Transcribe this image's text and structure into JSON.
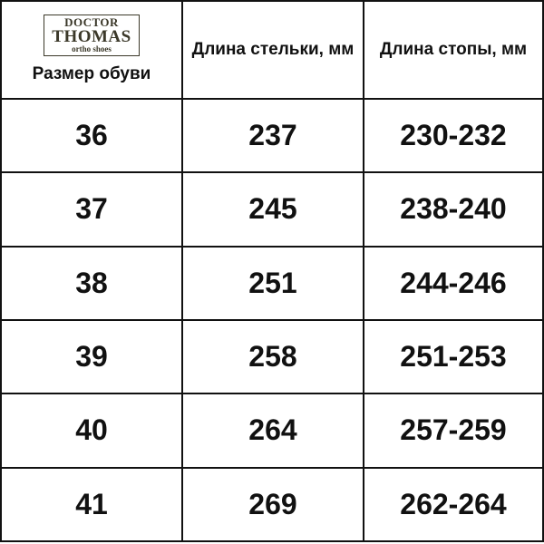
{
  "logo": {
    "line1": "DOCTOR",
    "line2": "THOMAS",
    "line3": "ortho shoes",
    "color": "#3b3829"
  },
  "headers": [
    "Размер обуви",
    "Длина стельки, мм",
    "Длина стопы, мм"
  ],
  "rows": [
    [
      "36",
      "237",
      "230-232"
    ],
    [
      "37",
      "245",
      "238-240"
    ],
    [
      "38",
      "251",
      "244-246"
    ],
    [
      "39",
      "258",
      "251-253"
    ],
    [
      "40",
      "264",
      "257-259"
    ],
    [
      "41",
      "269",
      "262-264"
    ]
  ]
}
